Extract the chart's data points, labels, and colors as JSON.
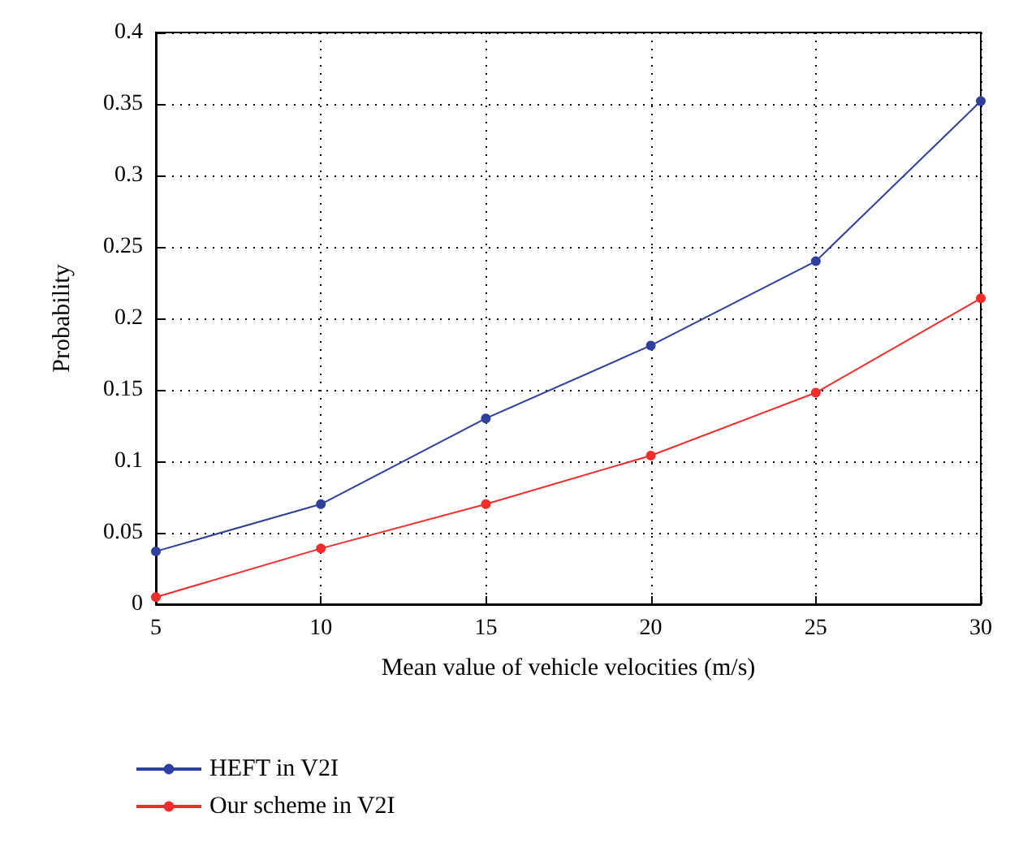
{
  "chart_data": {
    "type": "line",
    "xlabel": "Mean value of vehicle velocities (m/s)",
    "ylabel": "Probability",
    "x": [
      5,
      10,
      15,
      20,
      25,
      30
    ],
    "series": [
      {
        "name": "HEFT in V2I",
        "color": "#2e3f9e",
        "values": [
          0.037,
          0.07,
          0.13,
          0.181,
          0.24,
          0.352
        ]
      },
      {
        "name": "Our scheme in V2I",
        "color": "#f42c2c",
        "values": [
          0.005,
          0.039,
          0.07,
          0.104,
          0.148,
          0.214
        ]
      }
    ],
    "xlim": [
      5,
      30
    ],
    "xticks": [
      5,
      10,
      15,
      20,
      25,
      30
    ],
    "ylim": [
      0,
      0.4
    ],
    "yticks": [
      0,
      0.05,
      0.1,
      0.15,
      0.2,
      0.25,
      0.3,
      0.35,
      0.4
    ],
    "grid": true,
    "legend": "bottom",
    "marker": "circle",
    "line_style": "solid"
  }
}
